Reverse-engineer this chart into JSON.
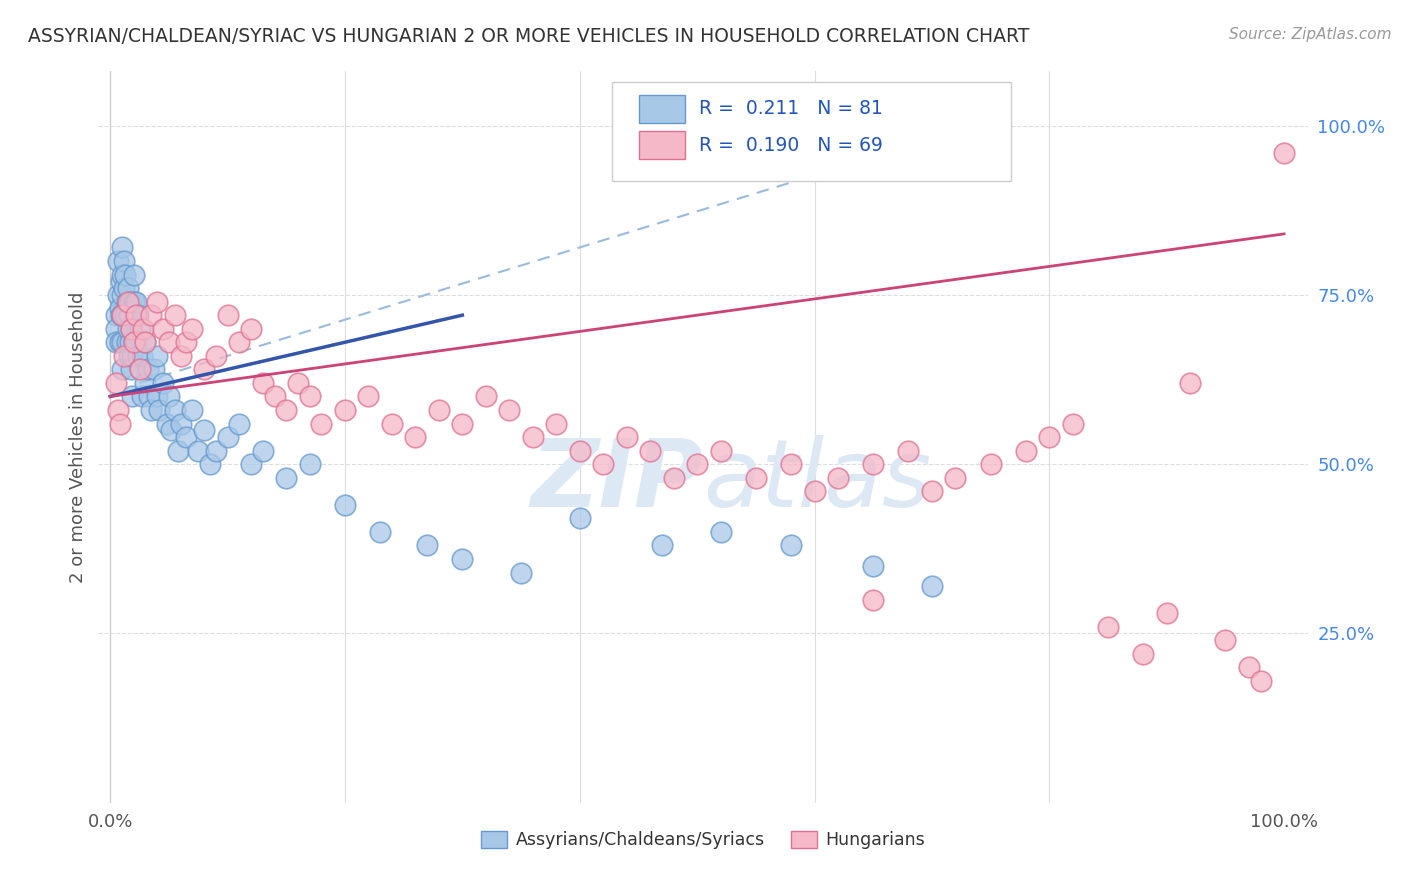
{
  "title": "ASSYRIAN/CHALDEAN/SYRIAC VS HUNGARIAN 2 OR MORE VEHICLES IN HOUSEHOLD CORRELATION CHART",
  "source": "Source: ZipAtlas.com",
  "ylabel": "2 or more Vehicles in Household",
  "legend_label1": "Assyrians/Chaldeans/Syriacs",
  "legend_label2": "Hungarians",
  "R1": "0.211",
  "N1": "81",
  "R2": "0.190",
  "N2": "69",
  "color_blue": "#a8c8e8",
  "color_blue_edge": "#6699cc",
  "color_pink": "#f4b8c8",
  "color_pink_edge": "#e07090",
  "line_color_blue": "#3355aa",
  "line_color_pink": "#cc4477",
  "line_dash_color": "#99bbdd",
  "background_color": "#ffffff",
  "watermark_color": "#dde8f5",
  "xlim": [
    0.0,
    1.0
  ],
  "ylim": [
    0.0,
    1.08
  ],
  "yticks": [
    0.25,
    0.5,
    0.75,
    1.0
  ],
  "ytick_labels": [
    "25.0%",
    "50.0%",
    "75.0%",
    "100.0%"
  ],
  "xtick_left_label": "0.0%",
  "xtick_right_label": "100.0%",
  "blue_x": [
    0.005,
    0.005,
    0.005,
    0.007,
    0.007,
    0.008,
    0.008,
    0.009,
    0.009,
    0.01,
    0.01,
    0.01,
    0.01,
    0.01,
    0.01,
    0.012,
    0.012,
    0.013,
    0.013,
    0.014,
    0.014,
    0.015,
    0.015,
    0.016,
    0.016,
    0.017,
    0.017,
    0.018,
    0.018,
    0.019,
    0.019,
    0.02,
    0.02,
    0.02,
    0.022,
    0.022,
    0.024,
    0.024,
    0.025,
    0.025,
    0.027,
    0.027,
    0.03,
    0.03,
    0.032,
    0.033,
    0.035,
    0.037,
    0.04,
    0.04,
    0.042,
    0.045,
    0.048,
    0.05,
    0.052,
    0.055,
    0.058,
    0.06,
    0.065,
    0.07,
    0.075,
    0.08,
    0.085,
    0.09,
    0.1,
    0.11,
    0.12,
    0.13,
    0.15,
    0.17,
    0.2,
    0.23,
    0.27,
    0.3,
    0.35,
    0.4,
    0.47,
    0.52,
    0.58,
    0.65,
    0.7
  ],
  "blue_y": [
    0.72,
    0.7,
    0.68,
    0.8,
    0.75,
    0.73,
    0.68,
    0.77,
    0.72,
    0.82,
    0.78,
    0.75,
    0.72,
    0.68,
    0.64,
    0.8,
    0.76,
    0.78,
    0.72,
    0.74,
    0.68,
    0.76,
    0.7,
    0.72,
    0.66,
    0.74,
    0.68,
    0.7,
    0.64,
    0.66,
    0.6,
    0.78,
    0.74,
    0.68,
    0.74,
    0.68,
    0.72,
    0.66,
    0.7,
    0.64,
    0.66,
    0.6,
    0.68,
    0.62,
    0.64,
    0.6,
    0.58,
    0.64,
    0.66,
    0.6,
    0.58,
    0.62,
    0.56,
    0.6,
    0.55,
    0.58,
    0.52,
    0.56,
    0.54,
    0.58,
    0.52,
    0.55,
    0.5,
    0.52,
    0.54,
    0.56,
    0.5,
    0.52,
    0.48,
    0.5,
    0.44,
    0.4,
    0.38,
    0.36,
    0.34,
    0.42,
    0.38,
    0.4,
    0.38,
    0.35,
    0.32
  ],
  "pink_x": [
    0.005,
    0.007,
    0.008,
    0.01,
    0.012,
    0.015,
    0.018,
    0.02,
    0.022,
    0.025,
    0.028,
    0.03,
    0.035,
    0.04,
    0.045,
    0.05,
    0.055,
    0.06,
    0.065,
    0.07,
    0.08,
    0.09,
    0.1,
    0.11,
    0.12,
    0.13,
    0.14,
    0.15,
    0.16,
    0.17,
    0.18,
    0.2,
    0.22,
    0.24,
    0.26,
    0.28,
    0.3,
    0.32,
    0.34,
    0.36,
    0.38,
    0.4,
    0.42,
    0.44,
    0.46,
    0.48,
    0.5,
    0.52,
    0.55,
    0.58,
    0.6,
    0.62,
    0.65,
    0.68,
    0.7,
    0.72,
    0.75,
    0.78,
    0.8,
    0.82,
    0.85,
    0.88,
    0.9,
    0.92,
    0.95,
    0.97,
    0.98,
    1.0,
    0.65
  ],
  "pink_y": [
    0.62,
    0.58,
    0.56,
    0.72,
    0.66,
    0.74,
    0.7,
    0.68,
    0.72,
    0.64,
    0.7,
    0.68,
    0.72,
    0.74,
    0.7,
    0.68,
    0.72,
    0.66,
    0.68,
    0.7,
    0.64,
    0.66,
    0.72,
    0.68,
    0.7,
    0.62,
    0.6,
    0.58,
    0.62,
    0.6,
    0.56,
    0.58,
    0.6,
    0.56,
    0.54,
    0.58,
    0.56,
    0.6,
    0.58,
    0.54,
    0.56,
    0.52,
    0.5,
    0.54,
    0.52,
    0.48,
    0.5,
    0.52,
    0.48,
    0.5,
    0.46,
    0.48,
    0.5,
    0.52,
    0.46,
    0.48,
    0.5,
    0.52,
    0.54,
    0.56,
    0.26,
    0.22,
    0.28,
    0.62,
    0.24,
    0.2,
    0.18,
    0.96,
    0.3
  ],
  "blue_line_x0": 0.0,
  "blue_line_x1": 0.3,
  "blue_line_y0": 0.6,
  "blue_line_y1": 0.72,
  "pink_line_x0": 0.0,
  "pink_line_x1": 1.0,
  "pink_line_y0": 0.6,
  "pink_line_y1": 0.84,
  "dash_line_x0": 0.025,
  "dash_line_x1": 0.7,
  "dash_line_y0": 0.62,
  "dash_line_y1": 0.98
}
